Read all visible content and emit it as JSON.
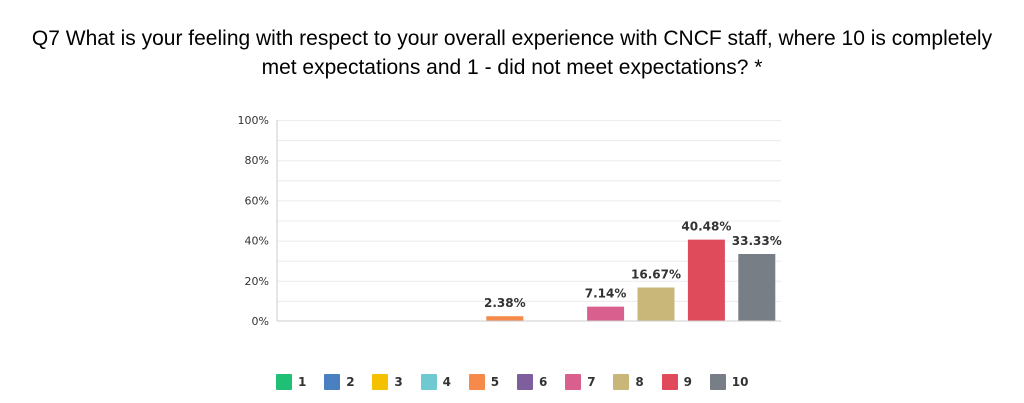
{
  "chart_data": {
    "type": "bar",
    "title": "Q7 What is your feeling with respect to your overall experience with CNCF staff, where 10 is completely met expectations and 1 - did not meet expectations? *",
    "categories": [
      "1",
      "2",
      "3",
      "4",
      "5",
      "6",
      "7",
      "8",
      "9",
      "10"
    ],
    "values": [
      0,
      0,
      0,
      0,
      2.38,
      0,
      7.14,
      16.67,
      40.48,
      33.33
    ],
    "data_labels": [
      "",
      "",
      "",
      "",
      "2.38%",
      "",
      "7.14%",
      "16.67%",
      "40.48%",
      "33.33%"
    ],
    "colors": [
      "#1fbf76",
      "#4a7fc1",
      "#f5c000",
      "#6ecad0",
      "#f58a4b",
      "#7e5e9c",
      "#d9608e",
      "#c9b77a",
      "#df4b5a",
      "#787e85"
    ],
    "yticks": [
      "0%",
      "20%",
      "40%",
      "60%",
      "80%",
      "100%"
    ],
    "ylim": [
      0,
      100
    ],
    "xlabel": "",
    "ylabel": "",
    "grid": true,
    "legend_position": "bottom"
  }
}
